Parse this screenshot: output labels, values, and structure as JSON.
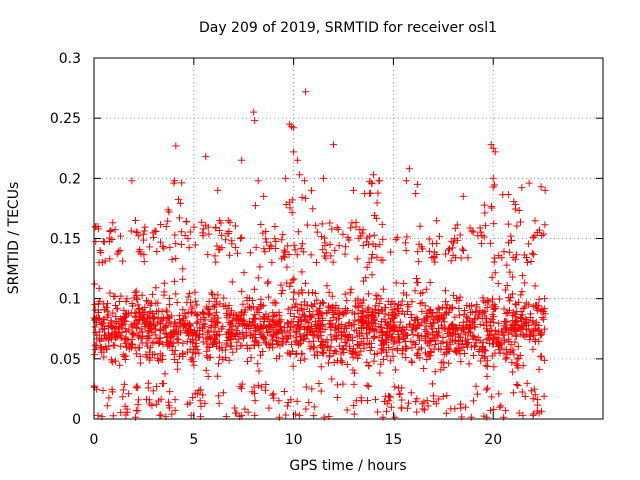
{
  "chart_data": {
    "type": "scatter",
    "title": "Day 209 of 2019, SRMTID for receiver osl1",
    "xlabel": "GPS time / hours",
    "ylabel": "SRMTID / TECUs",
    "xlim": [
      0,
      25.5
    ],
    "ylim": [
      0,
      0.3
    ],
    "xticks": [
      0,
      5,
      10,
      15,
      20
    ],
    "xtick_labels": [
      "0",
      "5",
      "10",
      "15",
      "20"
    ],
    "yticks": [
      0,
      0.05,
      0.1,
      0.15,
      0.2,
      0.25,
      0.3
    ],
    "ytick_labels": [
      "0",
      "0.05",
      "0.1",
      "0.15",
      "0.2",
      "0.25",
      "0.3"
    ],
    "grid": true,
    "marker": "+",
    "color": "#ff0000",
    "series": [
      {
        "name": "SRMTID",
        "points": [
          [
            0.1,
            0.16
          ],
          [
            0.2,
            0.16
          ],
          [
            0.3,
            0.14
          ],
          [
            0.2,
            0.003
          ],
          [
            0.4,
            0.002
          ],
          [
            8.0,
            0.255
          ],
          [
            8.05,
            0.248
          ],
          [
            10.6,
            0.272
          ],
          [
            9.8,
            0.245
          ],
          [
            9.9,
            0.243
          ],
          [
            10.0,
            0.242
          ],
          [
            10.0,
            0.222
          ],
          [
            10.2,
            0.215
          ],
          [
            12.0,
            0.228
          ],
          [
            19.9,
            0.228
          ],
          [
            20.0,
            0.225
          ],
          [
            20.1,
            0.222
          ],
          [
            4.1,
            0.227
          ],
          [
            5.6,
            0.218
          ],
          [
            7.4,
            0.215
          ],
          [
            14.0,
            0.203
          ],
          [
            15.8,
            0.208
          ],
          [
            1.9,
            0.198
          ],
          [
            4.0,
            0.196
          ],
          [
            9.6,
            0.2
          ],
          [
            10.3,
            0.203
          ],
          [
            11.5,
            0.2
          ],
          [
            16.2,
            0.195
          ],
          [
            20.0,
            0.2
          ],
          [
            21.8,
            0.196
          ],
          [
            22.4,
            0.193
          ],
          [
            22.6,
            0.19
          ],
          [
            3.3,
            0.003
          ],
          [
            3.6,
            0.002
          ],
          [
            3.9,
            0.004
          ],
          [
            7.3,
            0.002
          ],
          [
            7.4,
            0.003
          ],
          [
            10.1,
            0.004
          ],
          [
            10.3,
            0.003
          ],
          [
            21.3,
            0.005
          ],
          [
            22.0,
            0.003
          ],
          [
            22.3,
            0.005
          ],
          [
            18.5,
            0.185
          ],
          [
            13.0,
            0.19
          ],
          [
            8.5,
            0.185
          ],
          [
            6.2,
            0.19
          ]
        ],
        "generated": {
          "x_range": [
            0.0,
            22.6
          ],
          "count": 2300,
          "median_level": 0.075,
          "typical_spread": [
            0.02,
            0.14
          ],
          "enhanced_windows": [
            [
              3.5,
              4.5
            ],
            [
              7.5,
              8.5
            ],
            [
              9.5,
              11.0
            ],
            [
              13.5,
              14.5
            ],
            [
              15.5,
              16.5
            ],
            [
              19.5,
              21.5
            ]
          ]
        }
      }
    ]
  }
}
